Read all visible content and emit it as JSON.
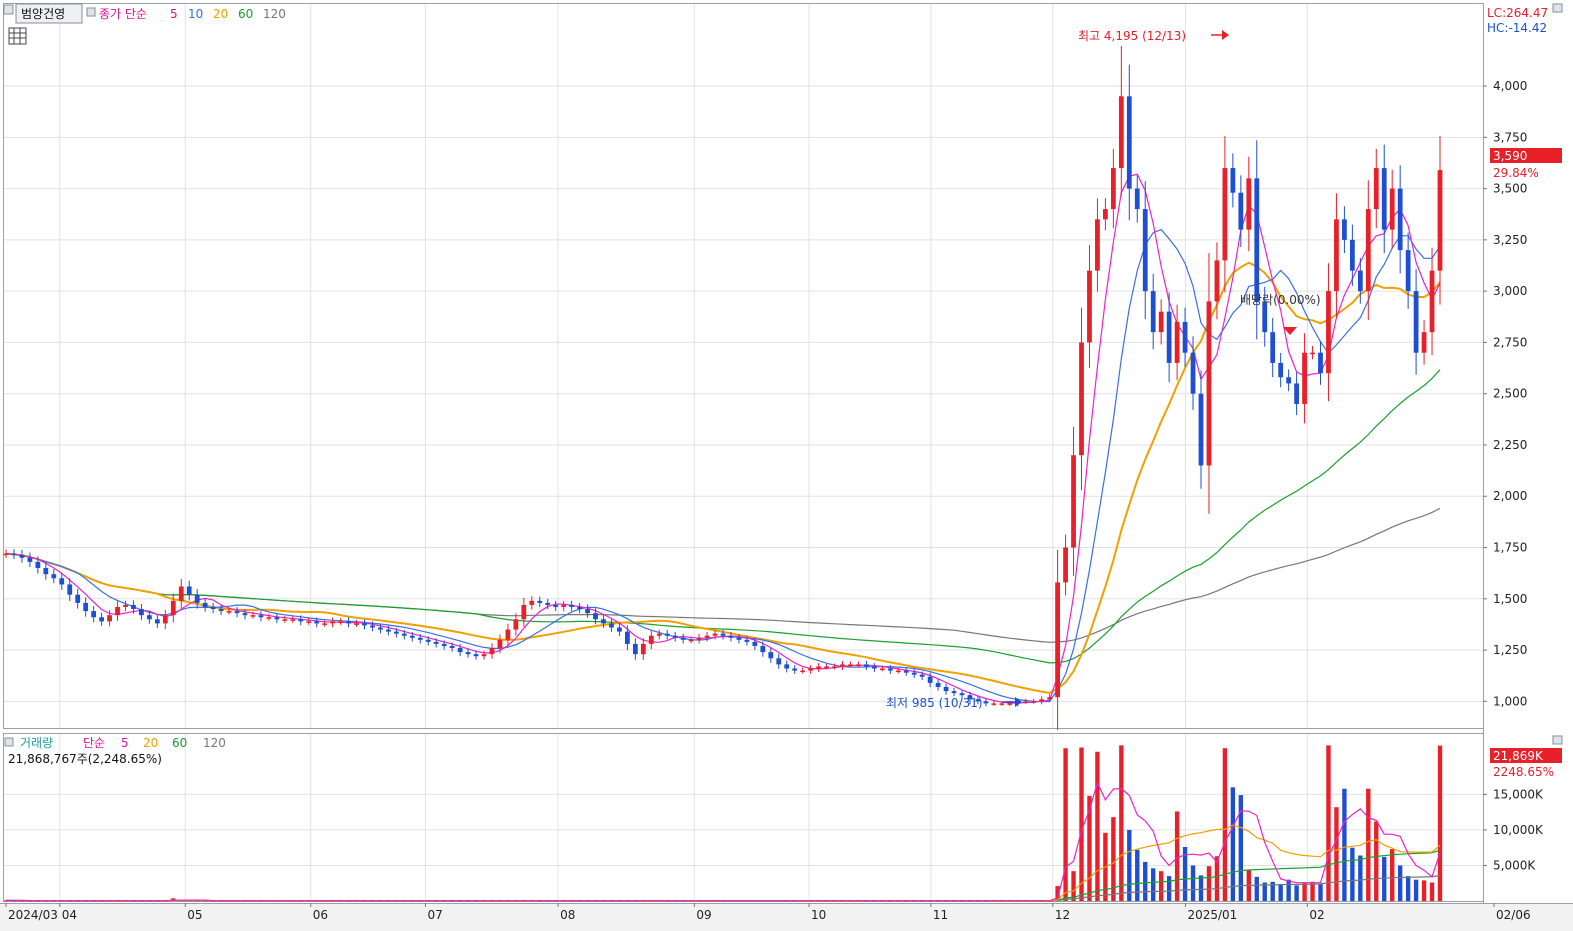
{
  "title_bar": {
    "stock_name": "범양건영",
    "price_label": "종가 단순",
    "ma_periods": [
      "5",
      "10",
      "20",
      "60",
      "120"
    ]
  },
  "corner": {
    "lc": "LC:264.47",
    "hc": "HC:-14.42"
  },
  "annotations": {
    "high": "최고 4,195 (12/13)",
    "low": "최저 985 (10/31)",
    "dividend": "배당락(0.00%)"
  },
  "price_tag": {
    "value": "3,590",
    "change": "29.84%"
  },
  "volume_panel": {
    "title": "거래량",
    "ma_label": "단순",
    "ma_periods": [
      "5",
      "20",
      "60",
      "120"
    ],
    "info": "21,868,767주(2,248.65%)",
    "tag_value": "21,869K",
    "tag_change": "2248.65%"
  },
  "colors": {
    "up": "#e8202a",
    "down": "#1e4fd2",
    "ma5": "#ee22cc",
    "ma10": "#3a6ee8",
    "ma20": "#f0a000",
    "ma60": "#1aa030",
    "ma120": "#777777"
  },
  "chart_data": [
    {
      "type": "candlestick",
      "x_tick_labels": [
        "2024/03",
        "04",
        "05",
        "06",
        "07",
        "08",
        "09",
        "10",
        "11",
        "12",
        "2025/01",
        "02",
        "02/06"
      ],
      "y_ticks": [
        "1,000",
        "1,250",
        "1,500",
        "1,750",
        "2,000",
        "2,250",
        "2,500",
        "2,750",
        "3,000",
        "3,250",
        "3,500",
        "3,750",
        "4,000"
      ],
      "ylim": [
        870,
        4400
      ],
      "series": [
        {
          "name": "종가",
          "values": [
            1720,
            1715,
            1700,
            1680,
            1650,
            1620,
            1600,
            1570,
            1520,
            1480,
            1440,
            1410,
            1390,
            1420,
            1460,
            1470,
            1450,
            1420,
            1400,
            1380,
            1420,
            1490,
            1560,
            1520,
            1480,
            1460,
            1450,
            1440,
            1440,
            1430,
            1420,
            1420,
            1410,
            1410,
            1400,
            1400,
            1400,
            1390,
            1390,
            1380,
            1380,
            1390,
            1390,
            1380,
            1380,
            1370,
            1360,
            1350,
            1340,
            1330,
            1320,
            1310,
            1300,
            1290,
            1280,
            1270,
            1260,
            1240,
            1230,
            1220,
            1230,
            1260,
            1300,
            1350,
            1400,
            1470,
            1490,
            1480,
            1470,
            1460,
            1470,
            1460,
            1450,
            1430,
            1400,
            1380,
            1360,
            1340,
            1280,
            1230,
            1280,
            1320,
            1330,
            1320,
            1310,
            1300,
            1300,
            1310,
            1320,
            1330,
            1320,
            1310,
            1300,
            1290,
            1270,
            1240,
            1210,
            1180,
            1160,
            1150,
            1150,
            1160,
            1170,
            1170,
            1170,
            1180,
            1180,
            1180,
            1170,
            1160,
            1160,
            1150,
            1150,
            1140,
            1130,
            1120,
            1090,
            1070,
            1050,
            1040,
            1030,
            1010,
            1000,
            990,
            990,
            990,
            990,
            1000,
            1000,
            1000,
            1010,
            1020,
            1580,
            1750,
            2200,
            2750,
            3100,
            3350,
            3400,
            3600,
            3950,
            3500,
            3400,
            3000,
            2800,
            2900,
            2650,
            2850,
            2700,
            2500,
            2150,
            2950,
            3150,
            3600,
            3480,
            3300,
            3550,
            2950,
            2800,
            2650,
            2580,
            2550,
            2450,
            2700,
            2700,
            2600,
            3000,
            3350,
            3250,
            3100,
            3000,
            3400,
            3600,
            3300,
            3500,
            3200,
            3000,
            2700,
            2800,
            3100,
            3590
          ]
        },
        {
          "name": "5",
          "values": []
        },
        {
          "name": "10",
          "values": []
        },
        {
          "name": "20",
          "values": []
        },
        {
          "name": "60",
          "values": []
        },
        {
          "name": "120",
          "values": []
        }
      ],
      "high": 4195,
      "low": 985,
      "last": 3590
    },
    {
      "type": "bar",
      "name": "거래량",
      "y_ticks": [
        "5,000K",
        "10,000K",
        "15,000K"
      ],
      "ylim": [
        0,
        23500
      ],
      "values_k": [
        80,
        60,
        50,
        40,
        40,
        40,
        40,
        40,
        40,
        40,
        40,
        40,
        40,
        40,
        40,
        40,
        40,
        40,
        40,
        40,
        60,
        380,
        120,
        60,
        40,
        40,
        40,
        40,
        40,
        40,
        40,
        40,
        40,
        40,
        40,
        40,
        40,
        40,
        40,
        40,
        40,
        40,
        40,
        40,
        40,
        40,
        40,
        40,
        40,
        40,
        40,
        40,
        40,
        40,
        40,
        40,
        40,
        40,
        40,
        40,
        40,
        40,
        40,
        40,
        40,
        40,
        40,
        40,
        40,
        40,
        40,
        40,
        40,
        40,
        40,
        40,
        40,
        40,
        40,
        40,
        40,
        40,
        40,
        40,
        40,
        40,
        40,
        40,
        40,
        40,
        40,
        40,
        40,
        40,
        40,
        40,
        40,
        40,
        40,
        40,
        40,
        40,
        40,
        40,
        40,
        40,
        40,
        40,
        40,
        40,
        40,
        40,
        40,
        40,
        40,
        40,
        40,
        40,
        40,
        40,
        40,
        40,
        40,
        40,
        40,
        40,
        40,
        40,
        40,
        40,
        40,
        40,
        2100,
        21500,
        4200,
        21600,
        14800,
        21000,
        9600,
        11800,
        21900,
        10000,
        7200,
        5500,
        4600,
        4200,
        3500,
        12600,
        7600,
        5000,
        3600,
        4900,
        6300,
        21500,
        16000,
        14900,
        4400,
        3400,
        2600,
        2700,
        2400,
        3000,
        2200,
        2600,
        2700,
        2400,
        21900,
        13200,
        15800,
        7500,
        6400,
        15800,
        11200,
        6200,
        7300,
        5000,
        3500,
        3000,
        2900,
        2600,
        21869
      ]
    }
  ]
}
